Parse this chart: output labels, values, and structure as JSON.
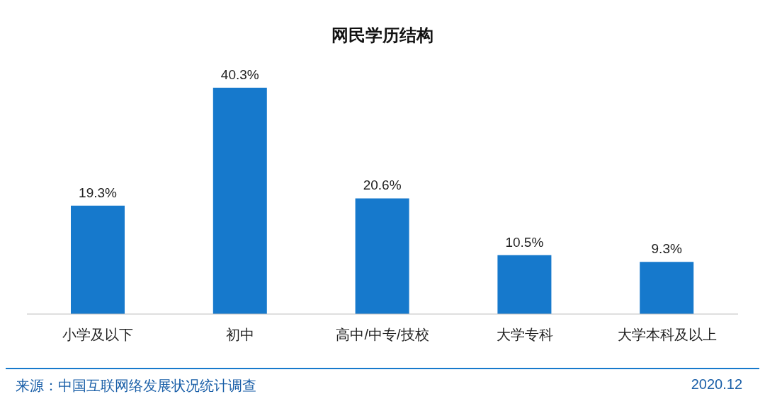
{
  "chart_data": {
    "type": "bar",
    "title": "网民学历结构",
    "categories": [
      "小学及以下",
      "初中",
      "高中/中专/技校",
      "大学专科",
      "大学本科及以上"
    ],
    "values": [
      19.3,
      40.3,
      20.6,
      10.5,
      9.3
    ],
    "value_labels": [
      "19.3%",
      "40.3%",
      "20.6%",
      "10.5%",
      "9.3%"
    ],
    "color": "#1679cc",
    "annotations": [
      "来源：中国互联网络发展状况统计调查",
      "2020.12"
    ]
  }
}
